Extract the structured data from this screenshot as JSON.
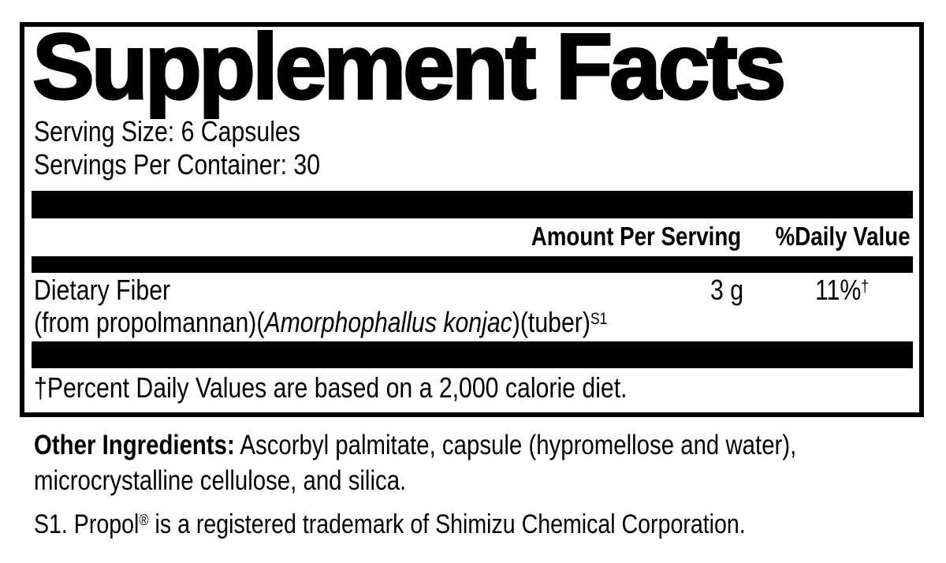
{
  "label": {
    "title": "Supplement Facts",
    "serving_size": "Serving Size: 6 Capsules",
    "servings_per_container": "Servings Per Container: 30",
    "columns": {
      "amount": "Amount Per Serving",
      "daily_value": "%Daily Value"
    },
    "rows": [
      {
        "name": "Dietary Fiber",
        "source_prefix": "(from propolmannan)(",
        "source_latin": "Amorphophallus konjac",
        "source_suffix": ")(tuber)",
        "source_sup": "S1",
        "amount": "3 g",
        "daily_value": "11%",
        "daily_value_sup": "†"
      }
    ],
    "footnote": "†Percent Daily Values are based on a 2,000 calorie diet."
  },
  "other_ingredients": {
    "label": "Other Ingredients:",
    "line1_rest": " Ascorbyl palmitate, capsule (hypromellose and water),",
    "line2": "microcrystalline cellulose, and silica."
  },
  "trademark": {
    "prefix": "S1. Propol",
    "sup": "®",
    "suffix": " is a registered trademark of Shimizu Chemical Corporation."
  },
  "colors": {
    "ink": "#000000",
    "background": "#ffffff"
  }
}
